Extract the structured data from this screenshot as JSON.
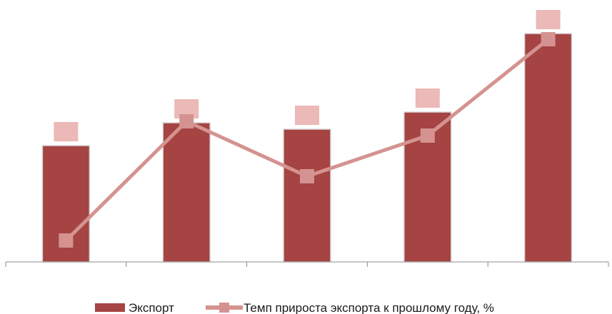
{
  "chart_data": {
    "type": "bar",
    "categories": [
      "",
      "",
      "",
      "",
      ""
    ],
    "grid": false,
    "legend_position": "bottom",
    "series": [
      {
        "name": "Экспорт",
        "type": "bar",
        "axis": "left",
        "values": [
          163,
          195,
          186,
          210,
          320
        ],
        "color": "#A54443"
      },
      {
        "name": "Темп прироста экспорта к прошлому году, %",
        "type": "line",
        "axis": "right",
        "values": [
          30,
          197,
          120,
          177,
          312
        ],
        "color": "#D49390",
        "marker": "square"
      }
    ],
    "ylim": [
      0,
      340
    ],
    "y2lim": [
      0,
      340
    ],
    "data_labels_color": "#EBB9B7"
  }
}
